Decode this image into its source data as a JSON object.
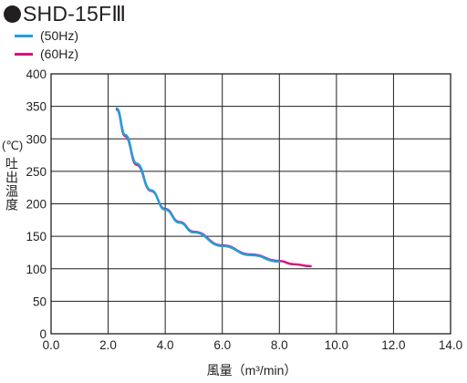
{
  "header": {
    "title": "SHD-15FⅢ"
  },
  "legend": [
    {
      "label": "(50Hz)",
      "color": "#1aa3dd"
    },
    {
      "label": "(60Hz)",
      "color": "#d9127e"
    }
  ],
  "chart_data": {
    "type": "line",
    "xlabel": "風量（m³/min）",
    "ylabel": "吐出温度",
    "ylabel_unit": "(℃)",
    "xlim": [
      0,
      14
    ],
    "ylim": [
      0,
      400
    ],
    "x_ticks": [
      "0.0",
      "2.0",
      "4.0",
      "6.0",
      "8.0",
      "10.0",
      "12.0",
      "14.0"
    ],
    "y_ticks": [
      "0",
      "50",
      "100",
      "150",
      "200",
      "250",
      "300",
      "350",
      "400"
    ],
    "grid": true,
    "series": [
      {
        "name": "(60Hz)",
        "color": "#d9127e",
        "x": [
          2.3,
          2.6,
          3.0,
          3.5,
          4.0,
          4.5,
          5.0,
          6.0,
          7.0,
          8.0,
          8.5,
          9.1
        ],
        "y": [
          345,
          304,
          260,
          220,
          192,
          172,
          157,
          136,
          122,
          112,
          107,
          104
        ]
      },
      {
        "name": "(50Hz)",
        "color": "#1aa3dd",
        "x": [
          2.3,
          2.6,
          3.0,
          3.5,
          4.0,
          4.5,
          5.0,
          6.0,
          7.0,
          8.0
        ],
        "y": [
          347,
          306,
          262,
          221,
          191,
          171,
          156,
          135,
          121,
          111
        ]
      }
    ]
  }
}
